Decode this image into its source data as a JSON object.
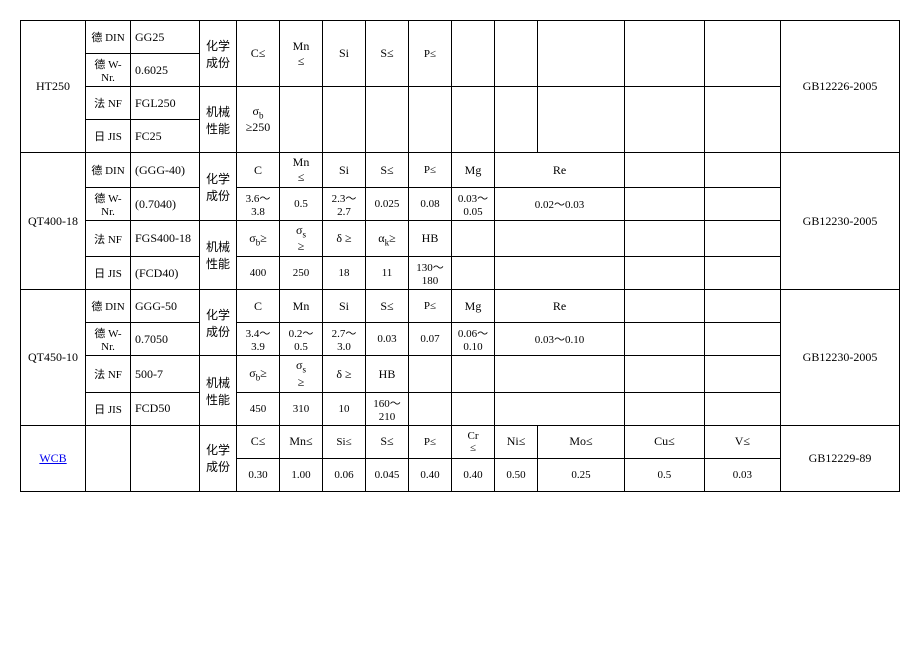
{
  "ht250": {
    "material": "HT250",
    "standards": [
      {
        "label": "德 DIN",
        "code": "GG25"
      },
      {
        "label": "德 W-Nr.",
        "code": "0.6025"
      },
      {
        "label": "法 NF",
        "code": "FGL250"
      },
      {
        "label": "日 JIS",
        "code": "FC25"
      }
    ],
    "chem_label": "化学成份",
    "mech_label": "机械性能",
    "chem_headers": [
      "C≤",
      "Mn≤",
      "Si",
      "S≤",
      "P≤"
    ],
    "mech_headers": [
      "σ_b ≥250"
    ],
    "gb": "GB12226-2005"
  },
  "qt400": {
    "material": "QT400-18",
    "standards": [
      {
        "label": "德 DIN",
        "code": "(GGG-40)"
      },
      {
        "label": "德 W-Nr.",
        "code": "(0.7040)"
      },
      {
        "label": "法 NF",
        "code": "FGS400-18"
      },
      {
        "label": "日 JIS",
        "code": "(FCD40)"
      }
    ],
    "chem_label": "化学成份",
    "mech_label": "机械性能",
    "chem_headers": [
      "C",
      "Mn≤",
      "Si",
      "S≤",
      "P≤",
      "Mg",
      "Re"
    ],
    "chem_values": [
      "3.6～3.8",
      "0.5",
      "2.3～2.7",
      "0.025",
      "0.08",
      "0.03～0.05",
      "0.02～0.03"
    ],
    "mech_headers": [
      "σ_b≥",
      "σ_s ≥",
      "δ ≥",
      "α_k≥",
      "HB"
    ],
    "mech_values": [
      "400",
      "250",
      "18",
      "11",
      "130～180"
    ],
    "gb": "GB12230-2005"
  },
  "qt450": {
    "material": "QT450-10",
    "standards": [
      {
        "label": "德 DIN",
        "code": "GGG-50"
      },
      {
        "label": "德 W-Nr.",
        "code": "0.7050"
      },
      {
        "label": "法 NF",
        "code": "500-7"
      },
      {
        "label": "日 JIS",
        "code": "FCD50"
      }
    ],
    "chem_label": "化学成份",
    "mech_label": "机械性能",
    "chem_headers": [
      "C",
      "Mn",
      "Si",
      "S≤",
      "P≤",
      "Mg",
      "Re"
    ],
    "chem_values": [
      "3.4～3.9",
      "0.2～0.5",
      "2.7～3.0",
      "0.03",
      "0.07",
      "0.06～0.10",
      "0.03～0.10"
    ],
    "mech_headers": [
      "σ_b≥",
      "σ_s ≥",
      "δ ≥",
      "HB"
    ],
    "mech_values": [
      "450",
      "310",
      "10",
      "160～210"
    ],
    "gb": "GB12230-2005"
  },
  "wcb": {
    "material": "WCB",
    "chem_label": "化学成份",
    "chem_headers": [
      "C≤",
      "Mn≤",
      "Si≤",
      "S≤",
      "P≤",
      "Cr≤",
      "Ni≤",
      "Mo≤",
      "Cu≤",
      "V≤"
    ],
    "chem_values": [
      "0.30",
      "1.00",
      "0.06",
      "0.045",
      "0.40",
      "0.40",
      "0.50",
      "0.25",
      "0.5",
      "0.03"
    ],
    "gb": "GB12229-89"
  }
}
